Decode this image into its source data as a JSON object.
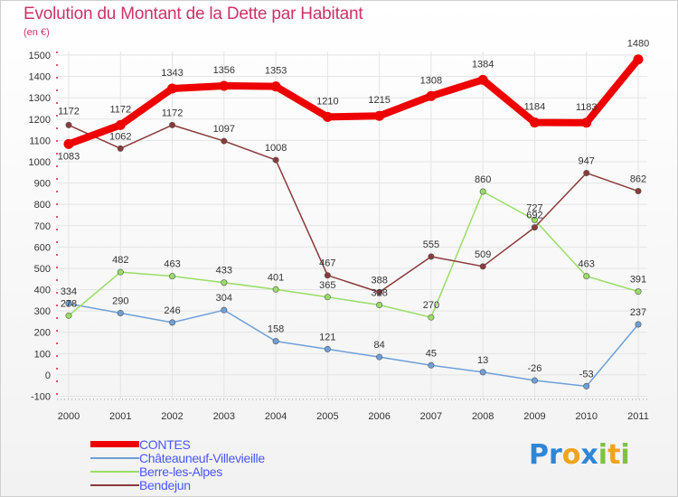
{
  "header": {
    "title": "Evolution du Montant de la Dette par Habitant",
    "subtitle": "(en €)"
  },
  "logo": {
    "text": "Proxiti",
    "letters": [
      {
        "ch": "P",
        "color": "#2f86d6"
      },
      {
        "ch": "r",
        "color": "#2f86d6"
      },
      {
        "ch": "o",
        "color": "#f2a31b"
      },
      {
        "ch": "x",
        "color": "#2f86d6"
      },
      {
        "ch": "i",
        "color": "#7dc242"
      },
      {
        "ch": "t",
        "color": "#f2a31b"
      },
      {
        "ch": "i",
        "color": "#7dc242"
      }
    ]
  },
  "chart_data": {
    "type": "line",
    "title": "Evolution du Montant de la Dette par Habitant",
    "subtitle": "(en €)",
    "x": [
      "2000",
      "2001",
      "2002",
      "2003",
      "2004",
      "2005",
      "2006",
      "2007",
      "2008",
      "2009",
      "2010",
      "2011"
    ],
    "yticks": [
      "-100",
      "0",
      "100",
      "200",
      "300",
      "400",
      "500",
      "600",
      "700",
      "800",
      "900",
      "1000",
      "1100",
      "1200",
      "1300",
      "1400",
      "1500"
    ],
    "ylim": [
      -100,
      1500
    ],
    "grid": true,
    "legend_position": "bottom-left",
    "series": [
      {
        "name": "CONTES",
        "color": "#ee0000",
        "values": [
          1083,
          1172,
          1343,
          1356,
          1353,
          1210,
          1215,
          1308,
          1384,
          1184,
          1183,
          1480
        ],
        "labels": [
          "1083",
          "1172",
          "1343",
          "1356",
          "1353",
          "1210",
          "1215",
          "1308",
          "1384",
          "1184",
          "1183",
          "1480"
        ]
      },
      {
        "name": "Châteauneuf-Villevieille",
        "color": "#6ea0d8",
        "values": [
          334,
          290,
          246,
          304,
          158,
          121,
          84,
          45,
          13,
          -26,
          -53,
          237
        ],
        "labels": [
          "334",
          "290",
          "246",
          "304",
          "158",
          "121",
          "84",
          "45",
          "13",
          "-26",
          "-53",
          "237"
        ]
      },
      {
        "name": "Berre-les-Alpes",
        "color": "#99dd66",
        "values": [
          278,
          482,
          463,
          433,
          401,
          365,
          328,
          270,
          860,
          727,
          463,
          391
        ],
        "labels": [
          "278",
          "482",
          "463",
          "433",
          "401",
          "365",
          "328",
          "270",
          "860",
          "727",
          "463",
          "391"
        ]
      },
      {
        "name": "Bendejun",
        "color": "#8a3a3a",
        "values": [
          1172,
          1062,
          1172,
          1097,
          1008,
          467,
          388,
          555,
          509,
          692,
          947,
          862
        ],
        "labels": [
          "1172",
          "1062",
          "1172",
          "1097",
          "1008",
          "467",
          "388",
          "555",
          "509",
          "692",
          "947",
          "862"
        ]
      }
    ]
  }
}
